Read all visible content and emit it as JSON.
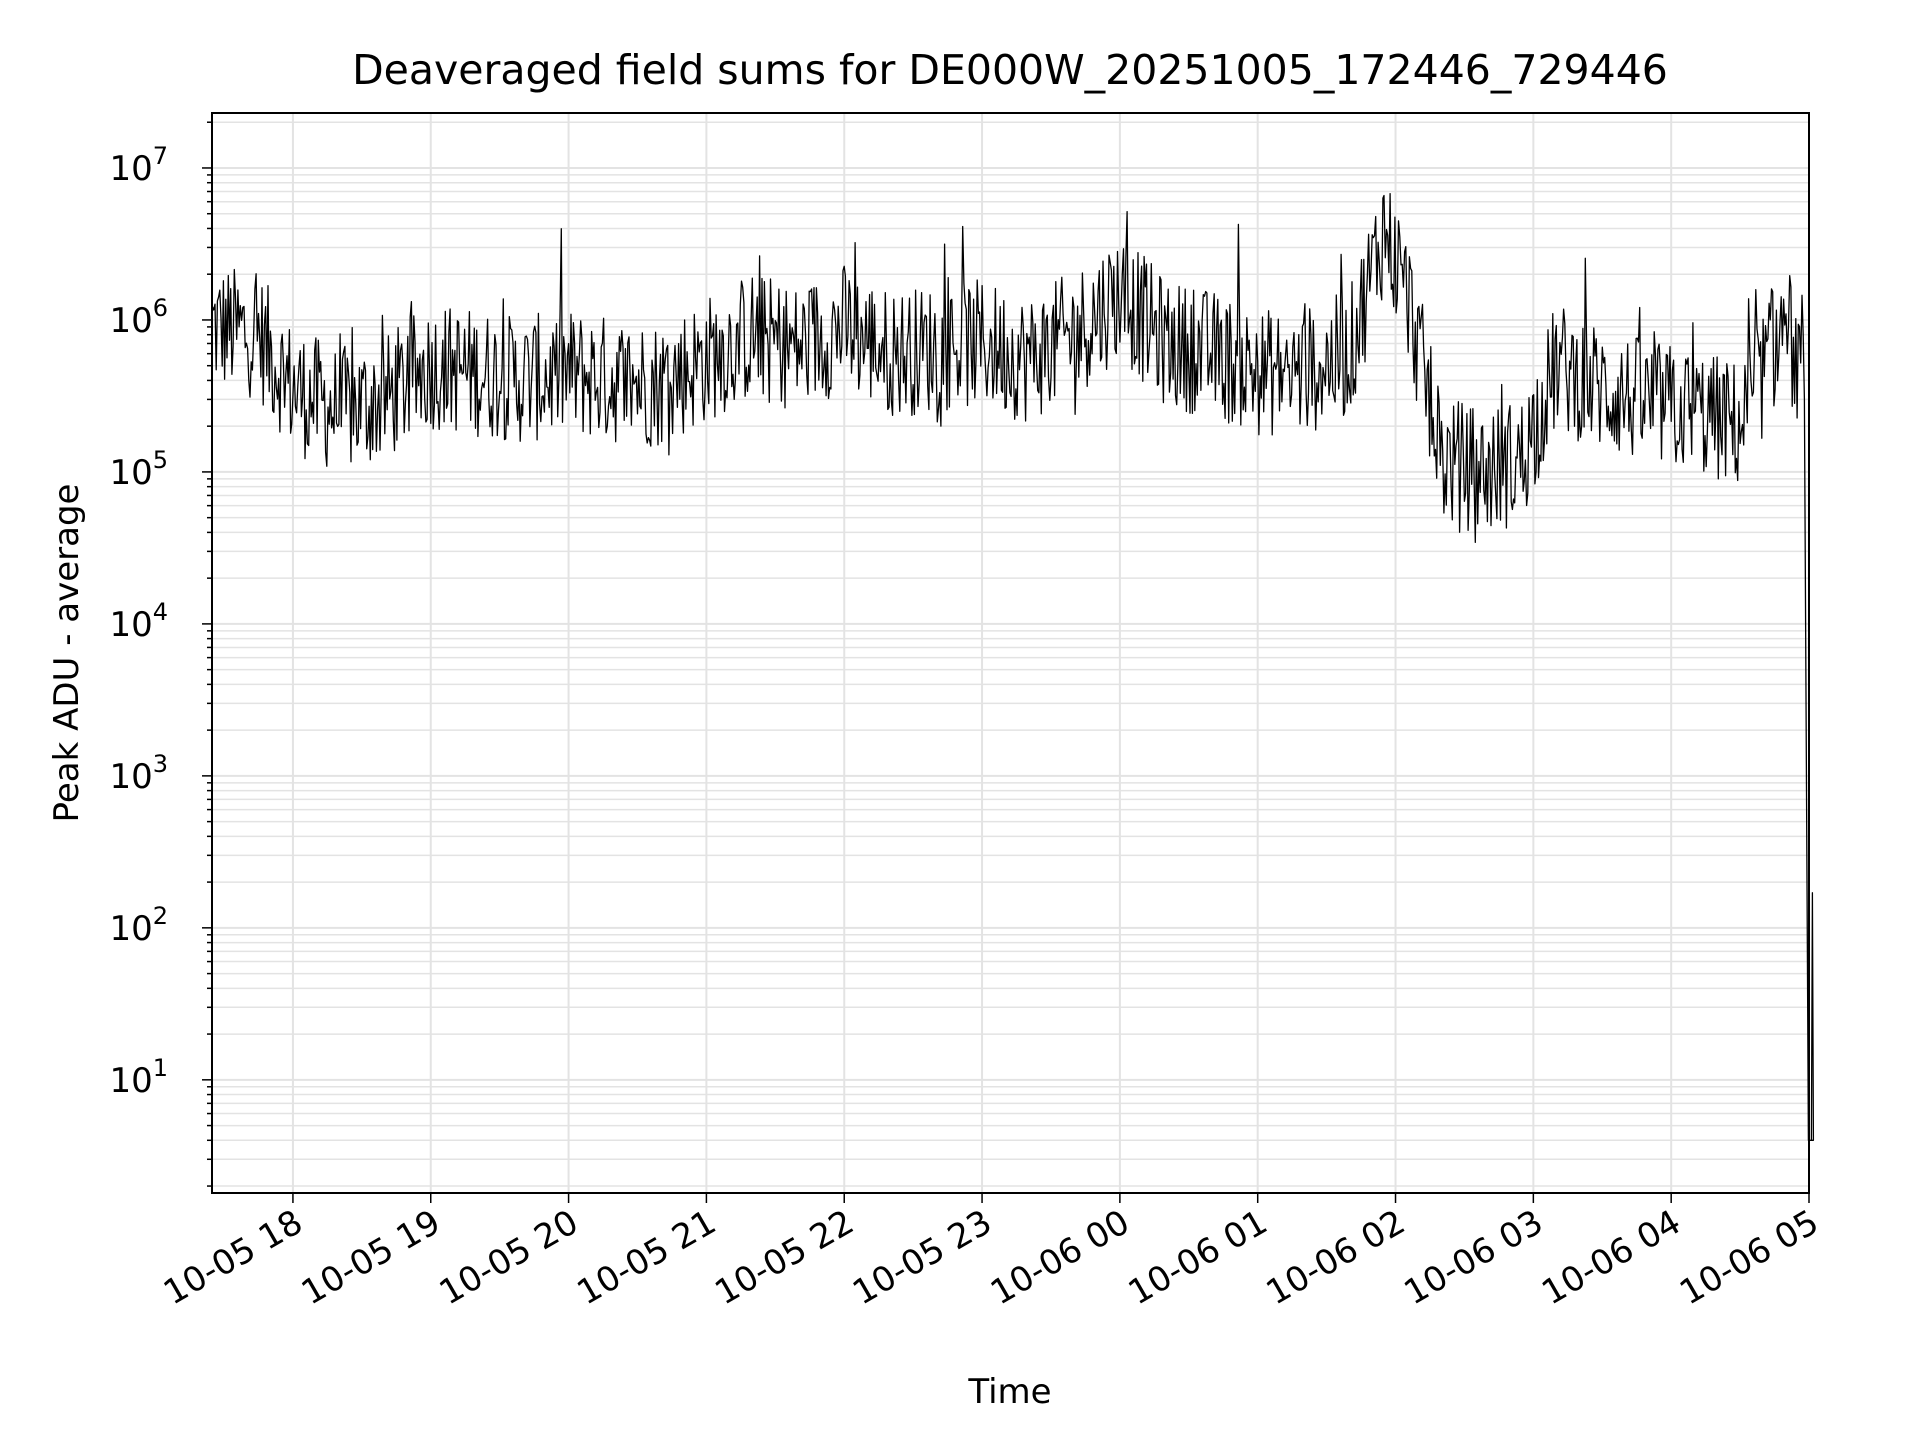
{
  "chart_data": {
    "type": "line",
    "title": "Deaveraged field sums for DE000W_20251005_172446_729446",
    "xlabel": "Time",
    "ylabel": "Peak ADU - average",
    "yscale": "log",
    "ylim": [
      1.8,
      23000000
    ],
    "xlim": [
      "2025-10-05 17:24:46",
      "2025-10-06 05:00:00"
    ],
    "grid": true,
    "line_color": "#000000",
    "x_ticks": [
      {
        "label": "10-05 18",
        "time": "2025-10-05 18:00"
      },
      {
        "label": "10-05 19",
        "time": "2025-10-05 19:00"
      },
      {
        "label": "10-05 20",
        "time": "2025-10-05 20:00"
      },
      {
        "label": "10-05 21",
        "time": "2025-10-05 21:00"
      },
      {
        "label": "10-05 22",
        "time": "2025-10-05 22:00"
      },
      {
        "label": "10-05 23",
        "time": "2025-10-05 23:00"
      },
      {
        "label": "10-06 00",
        "time": "2025-10-06 00:00"
      },
      {
        "label": "10-06 01",
        "time": "2025-10-06 01:00"
      },
      {
        "label": "10-06 02",
        "time": "2025-10-06 02:00"
      },
      {
        "label": "10-06 03",
        "time": "2025-10-06 03:00"
      },
      {
        "label": "10-06 04",
        "time": "2025-10-06 04:00"
      },
      {
        "label": "10-06 05",
        "time": "2025-10-06 05:00"
      }
    ],
    "y_ticks": [
      {
        "mantissa": "10",
        "exp": "1",
        "value": 10
      },
      {
        "mantissa": "10",
        "exp": "2",
        "value": 100
      },
      {
        "mantissa": "10",
        "exp": "3",
        "value": 1000
      },
      {
        "mantissa": "10",
        "exp": "4",
        "value": 10000
      },
      {
        "mantissa": "10",
        "exp": "5",
        "value": 100000
      },
      {
        "mantissa": "10",
        "exp": "6",
        "value": 1000000
      },
      {
        "mantissa": "10",
        "exp": "7",
        "value": 10000000
      }
    ],
    "series": [
      {
        "x": [
          "2025-10-05 17:25",
          "2025-10-05 17:45",
          "2025-10-05 18:00",
          "2025-10-05 18:20",
          "2025-10-05 18:40",
          "2025-10-05 19:00",
          "2025-10-05 19:20",
          "2025-10-05 19:40",
          "2025-10-05 20:00",
          "2025-10-05 20:20",
          "2025-10-05 20:40",
          "2025-10-05 21:00",
          "2025-10-05 21:20",
          "2025-10-05 21:40",
          "2025-10-05 22:00",
          "2025-10-05 22:20",
          "2025-10-05 22:40",
          "2025-10-05 23:00",
          "2025-10-05 23:20",
          "2025-10-05 23:40",
          "2025-10-06 00:00",
          "2025-10-06 00:20",
          "2025-10-06 00:40",
          "2025-10-06 01:00",
          "2025-10-06 01:20",
          "2025-10-06 01:40",
          "2025-10-06 01:55",
          "2025-10-06 02:05",
          "2025-10-06 02:20",
          "2025-10-06 02:40",
          "2025-10-06 02:55",
          "2025-10-06 03:10",
          "2025-10-06 03:30",
          "2025-10-06 03:50",
          "2025-10-06 04:10",
          "2025-10-06 04:30",
          "2025-10-06 04:50",
          "2025-10-06 04:58",
          "2025-10-06 04:59",
          "2025-10-06 05:00"
        ],
        "y": [
          900000,
          800000,
          350000,
          250000,
          300000,
          500000,
          450000,
          400000,
          450000,
          400000,
          380000,
          550000,
          800000,
          650000,
          900000,
          600000,
          650000,
          700000,
          550000,
          800000,
          1500000,
          700000,
          600000,
          450000,
          450000,
          600000,
          4000000,
          1500000,
          120000,
          100000,
          120000,
          500000,
          350000,
          280000,
          250000,
          200000,
          1000000,
          300000,
          4,
          4
        ]
      }
    ]
  }
}
